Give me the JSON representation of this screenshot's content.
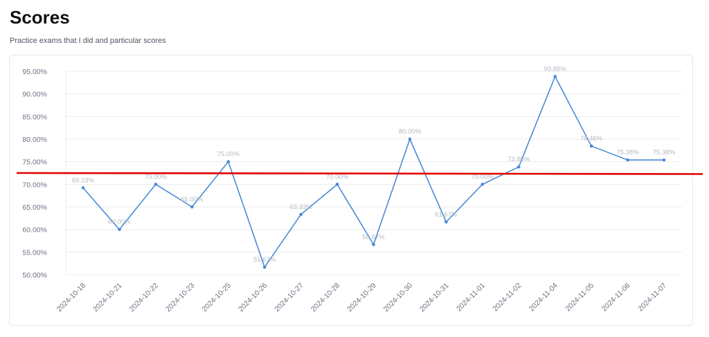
{
  "page": {
    "title": "Scores",
    "subtitle": "Practice exams that I did and particular scores"
  },
  "colors": {
    "line": "#4a8ad6",
    "grid": "#ececec",
    "threshold": "#e00000",
    "tick_text": "#6b7280",
    "point_label_text": "#b3b8c0"
  },
  "chart_data": {
    "type": "line",
    "title": "",
    "xlabel": "",
    "ylabel": "",
    "ylim": [
      50,
      95
    ],
    "y_ticks": [
      50,
      55,
      60,
      65,
      70,
      75,
      80,
      85,
      90,
      95
    ],
    "y_tick_labels": [
      "50.00%",
      "55.00%",
      "60.00%",
      "65.00%",
      "70.00%",
      "75.00%",
      "80.00%",
      "85.00%",
      "90.00%",
      "95.00%"
    ],
    "grid": true,
    "categories": [
      "2024-10-18",
      "2024-10-21",
      "2024-10-22",
      "2024-10-23",
      "2024-10-25",
      "2024-10-26",
      "2024-10-27",
      "2024-10-28",
      "2024-10-29",
      "2024-10-30",
      "2024-10-31",
      "2024-11-01",
      "2024-11-02",
      "2024-11-04",
      "2024-11-05",
      "2024-11-06",
      "2024-11-07"
    ],
    "series": [
      {
        "values": [
          69.23,
          60.0,
          70.0,
          65.0,
          75.0,
          51.67,
          63.33,
          70.0,
          56.67,
          80.0,
          61.67,
          70.0,
          73.85,
          93.85,
          78.46,
          75.38,
          75.38
        ],
        "labels": [
          "69.23%",
          "60.00%",
          "70.00%",
          "65.00%",
          "75.00%",
          "51.67%",
          "63.33%",
          "70.00%",
          "56.67%",
          "80.00%",
          "61.67%",
          "70.00%",
          "73.85%",
          "93.85%",
          "78.46%",
          "75.38%",
          "75.38%"
        ]
      }
    ],
    "threshold_line": {
      "value": 72.5
    }
  }
}
